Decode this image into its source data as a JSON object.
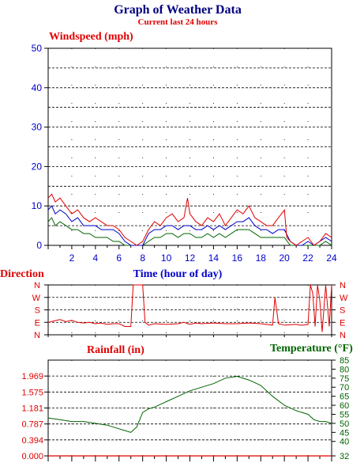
{
  "title": "Graph of Weather Data",
  "subtitle": "Current last 24 hours",
  "colors": {
    "title": "#000080",
    "red": "#e00000",
    "blue": "#0000cc",
    "green": "#006400",
    "grid": "#000000"
  },
  "chart_data": [
    {
      "type": "line",
      "ylabel": "Windspeed (mph)",
      "xlabel": "Time (hour of day)",
      "xlim": [
        0,
        24
      ],
      "ylim": [
        0,
        50
      ],
      "x_ticks": [
        "2",
        "4",
        "6",
        "8",
        "10",
        "12",
        "14",
        "16",
        "18",
        "20",
        "22",
        "24"
      ],
      "y_ticks": [
        "0",
        "10",
        "20",
        "30",
        "40",
        "50"
      ],
      "grid": true,
      "series": [
        {
          "color": "#e00000",
          "x": [
            0,
            0.3,
            0.6,
            1,
            1.5,
            2,
            2.5,
            3,
            3.5,
            4,
            4.5,
            5,
            5.5,
            6,
            6.5,
            7,
            7.5,
            8,
            8.5,
            9,
            9.5,
            10,
            10.5,
            11,
            11.5,
            11.8,
            12,
            12.5,
            13,
            13.5,
            14,
            14.5,
            15,
            15.5,
            16,
            16.5,
            17,
            17.5,
            18,
            18.5,
            19,
            19.5,
            20,
            20.2,
            20.5,
            21,
            21.5,
            22,
            22.5,
            23,
            23.5,
            24
          ],
          "values": [
            12,
            13,
            11,
            12,
            10,
            8,
            9,
            7,
            6,
            7,
            6,
            5,
            5,
            4,
            2,
            1,
            0,
            1,
            4,
            6,
            5,
            7,
            8,
            6,
            7,
            12,
            8,
            6,
            5,
            7,
            6,
            8,
            5,
            7,
            9,
            8,
            10,
            7,
            6,
            5,
            5,
            7,
            9,
            2,
            1,
            0,
            1,
            2,
            0,
            1,
            3,
            2
          ]
        },
        {
          "color": "#0000cc",
          "x": [
            0,
            0.3,
            0.6,
            1,
            1.5,
            2,
            2.5,
            3,
            3.5,
            4,
            4.5,
            5,
            5.5,
            6,
            6.5,
            7,
            7.5,
            8,
            8.5,
            9,
            9.5,
            10,
            10.5,
            11,
            11.5,
            12,
            12.5,
            13,
            13.5,
            14,
            14.5,
            15,
            15.5,
            16,
            16.5,
            17,
            17.5,
            18,
            18.5,
            19,
            19.5,
            20,
            20.5,
            21,
            21.5,
            22,
            22.5,
            23,
            23.5,
            24
          ],
          "values": [
            9,
            10,
            8,
            9,
            8,
            6,
            7,
            5,
            5,
            5,
            4,
            4,
            4,
            3,
            1,
            0,
            0,
            0,
            3,
            4,
            4,
            5,
            5,
            4,
            5,
            5,
            4,
            4,
            5,
            4,
            5,
            4,
            5,
            6,
            6,
            7,
            5,
            4,
            4,
            3,
            4,
            4,
            1,
            0,
            0,
            1,
            0,
            1,
            2,
            1
          ]
        },
        {
          "color": "#006400",
          "x": [
            0,
            0.3,
            0.6,
            1,
            1.5,
            2,
            2.5,
            3,
            3.5,
            4,
            4.5,
            5,
            5.5,
            6,
            6.5,
            7,
            7.5,
            8,
            8.5,
            9,
            9.5,
            10,
            10.5,
            11,
            11.5,
            12,
            12.5,
            13,
            13.5,
            14,
            14.5,
            15,
            15.5,
            16,
            16.5,
            17,
            17.5,
            18,
            18.5,
            19,
            19.5,
            20,
            20.5,
            21,
            21.5,
            22,
            22.5,
            23,
            23.5,
            24
          ],
          "values": [
            6,
            7,
            5,
            6,
            5,
            4,
            4,
            3,
            3,
            2,
            2,
            2,
            1,
            1,
            0,
            0,
            0,
            0,
            1,
            2,
            2,
            3,
            3,
            2,
            3,
            3,
            2,
            2,
            3,
            2,
            3,
            2,
            3,
            4,
            4,
            4,
            3,
            2,
            2,
            2,
            2,
            2,
            0,
            0,
            0,
            0,
            0,
            0,
            1,
            0
          ]
        }
      ]
    },
    {
      "type": "line",
      "ylabel": "Direction",
      "y_ticks": [
        "N",
        "W",
        "S",
        "E",
        "N"
      ],
      "right_ticks": [
        "N",
        "W",
        "S",
        "E",
        "N"
      ],
      "grid": true,
      "series": [
        {
          "color": "#e00000",
          "x": [
            0,
            0.5,
            1,
            1.5,
            2,
            2.5,
            3,
            3.5,
            4,
            4.5,
            5,
            5.5,
            6,
            6.5,
            7,
            7.2,
            7.5,
            8,
            8.2,
            8.5,
            9,
            10,
            11,
            11.5,
            12,
            12.5,
            13,
            14,
            15,
            16,
            17,
            18,
            19,
            19.2,
            19.5,
            20,
            21,
            21.3,
            21.6,
            22,
            22.2,
            22.4,
            22.6,
            22.8,
            23,
            23.2,
            23.5,
            23.8,
            24
          ],
          "values": [
            90,
            100,
            110,
            95,
            105,
            90,
            85,
            90,
            80,
            85,
            75,
            80,
            80,
            60,
            60,
            360,
            360,
            360,
            90,
            70,
            80,
            75,
            80,
            90,
            75,
            85,
            80,
            85,
            80,
            80,
            85,
            80,
            70,
            270,
            80,
            70,
            75,
            70,
            70,
            75,
            360,
            300,
            60,
            360,
            250,
            20,
            360,
            60,
            360
          ]
        }
      ]
    },
    {
      "type": "line",
      "ylabel": "Rainfall (in)",
      "y2label": "Temperature (°F)",
      "left_ticks": [
        "0.000",
        "0.394",
        "0.787",
        "1.181",
        "1.575",
        "1.969"
      ],
      "right_ticks": [
        "32",
        "40",
        "45",
        "50",
        "55",
        "60",
        "65",
        "70",
        "75",
        "80",
        "85"
      ],
      "grid": true,
      "series": [
        {
          "name": "Rainfall",
          "color": "#e00000",
          "x": [
            0,
            24
          ],
          "values": [
            0,
            0
          ]
        },
        {
          "name": "Temperature",
          "color": "#006400",
          "x": [
            0,
            1,
            2,
            3,
            4,
            5,
            6,
            6.5,
            7,
            7.5,
            8,
            8.5,
            9,
            10,
            11,
            12,
            13,
            14,
            15,
            16,
            17,
            18,
            19,
            20,
            21,
            22,
            22.5,
            23,
            23.5,
            24
          ],
          "values": [
            53,
            52,
            51,
            51,
            50,
            49,
            47,
            46,
            45,
            48,
            56,
            58,
            59,
            62,
            65,
            68,
            70,
            72,
            75,
            76,
            74,
            71,
            65,
            60,
            57,
            55,
            52,
            51,
            51,
            50
          ]
        }
      ]
    }
  ]
}
